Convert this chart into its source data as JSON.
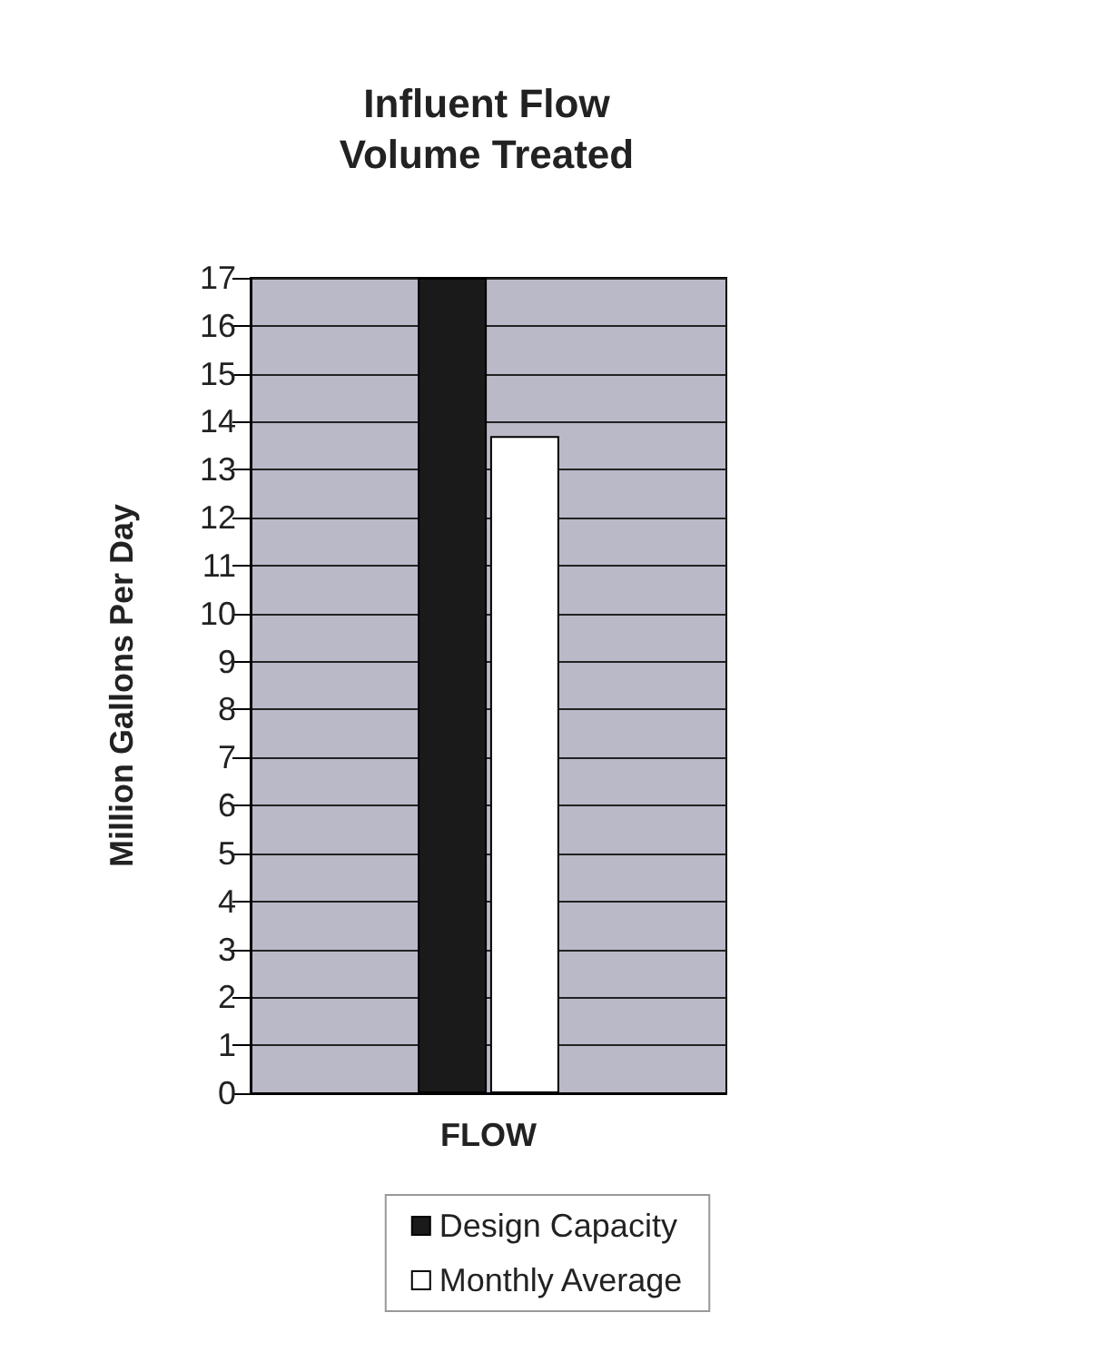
{
  "chart_data": {
    "type": "bar",
    "title": "Influent Flow\nVolume Treated",
    "ylabel": "Million Gallons Per Day",
    "categories": [
      "FLOW"
    ],
    "series": [
      {
        "name": "Design Capacity",
        "color": "#1a1a1a",
        "values": [
          17
        ]
      },
      {
        "name": "Monthly Average",
        "color": "#ffffff",
        "values": [
          13.7
        ]
      }
    ],
    "ylim": [
      0,
      17
    ],
    "yticks": [
      0,
      1,
      2,
      3,
      4,
      5,
      6,
      7,
      8,
      9,
      10,
      11,
      12,
      13,
      14,
      15,
      16,
      17
    ],
    "grid": "y",
    "legend": "bottom"
  }
}
